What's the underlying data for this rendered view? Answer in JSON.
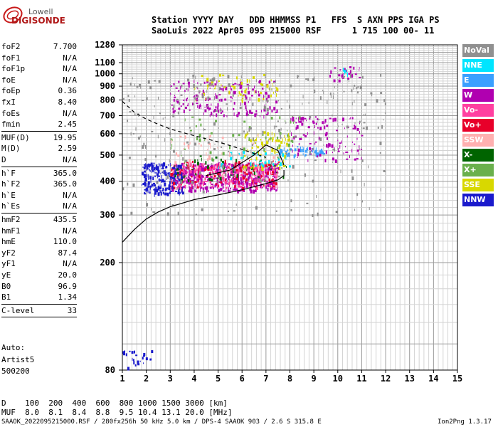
{
  "logo": {
    "line1": "Lowell",
    "line2": "DIGISONDE"
  },
  "header": {
    "line1": "Station YYYY DAY   DDD HHMMSS P1   FFS  S AXN PPS IGA PS",
    "line2": "SaoLuis 2022 Apr05 095 215000 RSF      1 715 100 00- 11"
  },
  "params": [
    {
      "name": "foF2",
      "value": "7.700"
    },
    {
      "name": "foF1",
      "value": "N/A"
    },
    {
      "name": "foF1p",
      "value": "N/A"
    },
    {
      "name": "foE",
      "value": "N/A"
    },
    {
      "name": "foEp",
      "value": "0.36"
    },
    {
      "name": "fxI",
      "value": "8.40"
    },
    {
      "name": "foEs",
      "value": "N/A"
    },
    {
      "name": "fmin",
      "value": "2.45"
    },
    {
      "name": "MUF(D)",
      "value": "19.95"
    },
    {
      "name": "M(D)",
      "value": "2.59"
    },
    {
      "name": "D",
      "value": "N/A"
    },
    {
      "name": "h`F",
      "value": "365.0"
    },
    {
      "name": "h`F2",
      "value": "365.0"
    },
    {
      "name": "h`E",
      "value": "N/A"
    },
    {
      "name": "h`Es",
      "value": "N/A"
    },
    {
      "name": "hmF2",
      "value": "435.5"
    },
    {
      "name": "hmF1",
      "value": "N/A"
    },
    {
      "name": "hmE",
      "value": "110.0"
    },
    {
      "name": "yF2",
      "value": "87.4"
    },
    {
      "name": "yF1",
      "value": "N/A"
    },
    {
      "name": "yE",
      "value": "20.0"
    },
    {
      "name": "B0",
      "value": "96.9"
    },
    {
      "name": "B1",
      "value": "1.34"
    },
    {
      "name": "C-level",
      "value": "33"
    }
  ],
  "scaler": {
    "line1": "Auto:",
    "line2": "Artist5",
    "line3": "500200"
  },
  "legend": [
    {
      "label": "NoVal",
      "color": "#909090",
      "text": "#ffffff"
    },
    {
      "label": "NNE",
      "color": "#00e5ff",
      "text": "#ffffff"
    },
    {
      "label": "E",
      "color": "#3aa0ff",
      "text": "#ffffff"
    },
    {
      "label": "W",
      "color": "#b000b0",
      "text": "#ffffff"
    },
    {
      "label": "Vo-",
      "color": "#ff40a0",
      "text": "#ffffff"
    },
    {
      "label": "Vo+",
      "color": "#e8002a",
      "text": "#ffffff"
    },
    {
      "label": "SSW",
      "color": "#ffb0b0",
      "text": "#ffffff"
    },
    {
      "label": "X-",
      "color": "#006400",
      "text": "#ffffff"
    },
    {
      "label": "X+",
      "color": "#6ab04c",
      "text": "#ffffff"
    },
    {
      "label": "SSE",
      "color": "#d8d800",
      "text": "#ffffff"
    },
    {
      "label": "NNW",
      "color": "#1a1acc",
      "text": "#ffffff"
    }
  ],
  "muf_table": {
    "d_line": "D    100  200  400  600  800 1000 1500 3000 [km]",
    "muf_line": "MUF  8.0  8.1  8.4  8.8  9.5 10.4 13.1 20.0 [MHz]"
  },
  "footer": {
    "left": "SAAOK_2022095215000.RSF / 280fx256h 50 kHz 5.0 km / DPS-4 SAAOK 903 / 2.6 S 315.8 E",
    "right": "Ion2Png 1.3.17"
  },
  "chart_data": {
    "type": "scatter",
    "xlabel": "",
    "ylabel": "",
    "xlim": [
      1,
      15
    ],
    "ylim": [
      80,
      1280
    ],
    "x_ticks": [
      "1",
      "2",
      "3",
      "4",
      "5",
      "6",
      "7",
      "8",
      "9",
      "10",
      "11",
      "12",
      "13",
      "14",
      "15"
    ],
    "y_ticks": [
      "80",
      "200",
      "300",
      "400",
      "500",
      "600",
      "700",
      "800",
      "900",
      "1000",
      "1100",
      "1280"
    ],
    "grid": true,
    "y_scale": "log",
    "curves": [
      {
        "name": "profile",
        "style": "solid",
        "points": [
          [
            1.0,
            238
          ],
          [
            1.5,
            265
          ],
          [
            2.0,
            290
          ],
          [
            2.5,
            308
          ],
          [
            3.0,
            322
          ],
          [
            4.0,
            342
          ],
          [
            5.0,
            356
          ],
          [
            6.0,
            372
          ],
          [
            7.0,
            392
          ],
          [
            7.5,
            405
          ],
          [
            7.75,
            420
          ],
          [
            7.75,
            440
          ]
        ]
      },
      {
        "name": "profile_upper",
        "style": "solid",
        "points": [
          [
            4.5,
            420
          ],
          [
            5.5,
            440
          ],
          [
            6.5,
            500
          ],
          [
            7.0,
            545
          ],
          [
            7.5,
            520
          ],
          [
            7.75,
            460
          ]
        ]
      },
      {
        "name": "muf_trace",
        "style": "dashed",
        "points": [
          [
            1.0,
            790
          ],
          [
            1.5,
            720
          ],
          [
            2.0,
            680
          ],
          [
            2.5,
            650
          ],
          [
            3.0,
            625
          ],
          [
            4.0,
            590
          ],
          [
            5.0,
            560
          ],
          [
            6.0,
            525
          ],
          [
            7.0,
            490
          ]
        ]
      }
    ],
    "echo_regions": [
      {
        "legend": "W",
        "x": [
          3.0,
          7.5
        ],
        "y": [
          370,
          470
        ],
        "n": 500
      },
      {
        "legend": "Vo-",
        "x": [
          3.0,
          7.5
        ],
        "y": [
          380,
          470
        ],
        "n": 250
      },
      {
        "legend": "NNW",
        "x": [
          1.8,
          3.5
        ],
        "y": [
          360,
          470
        ],
        "n": 220
      },
      {
        "legend": "Vo+",
        "x": [
          3.0,
          7.5
        ],
        "y": [
          380,
          480
        ],
        "n": 120
      },
      {
        "legend": "X-",
        "x": [
          3.0,
          8.0
        ],
        "y": [
          400,
          500
        ],
        "n": 60
      },
      {
        "legend": "SSE",
        "x": [
          6.0,
          8.0
        ],
        "y": [
          450,
          620
        ],
        "n": 90
      },
      {
        "legend": "E",
        "x": [
          7.5,
          9.5
        ],
        "y": [
          500,
          540
        ],
        "n": 60
      },
      {
        "legend": "NNE",
        "x": [
          5.0,
          8.0
        ],
        "y": [
          450,
          520
        ],
        "n": 40
      },
      {
        "legend": "SSW",
        "x": [
          3.0,
          7.5
        ],
        "y": [
          420,
          600
        ],
        "n": 60
      },
      {
        "legend": "X+",
        "x": [
          3.0,
          8.5
        ],
        "y": [
          480,
          700
        ],
        "n": 60
      },
      {
        "legend": "W",
        "x": [
          8.0,
          11.0
        ],
        "y": [
          480,
          700
        ],
        "n": 120
      },
      {
        "legend": "W",
        "x": [
          3.0,
          7.5
        ],
        "y": [
          700,
          950
        ],
        "n": 180
      },
      {
        "legend": "SSE",
        "x": [
          4.0,
          7.5
        ],
        "y": [
          800,
          1000
        ],
        "n": 60
      },
      {
        "legend": "W",
        "x": [
          9.5,
          11.0
        ],
        "y": [
          950,
          1080
        ],
        "n": 25
      },
      {
        "legend": "NNE",
        "x": [
          10.0,
          10.5
        ],
        "y": [
          1000,
          1080
        ],
        "n": 8
      },
      {
        "legend": "NNW",
        "x": [
          1.0,
          2.2
        ],
        "y": [
          80,
          95
        ],
        "n": 25
      },
      {
        "legend": "NoVal",
        "x": [
          1.0,
          12.0
        ],
        "y": [
          300,
          1000
        ],
        "n": 300
      }
    ]
  }
}
